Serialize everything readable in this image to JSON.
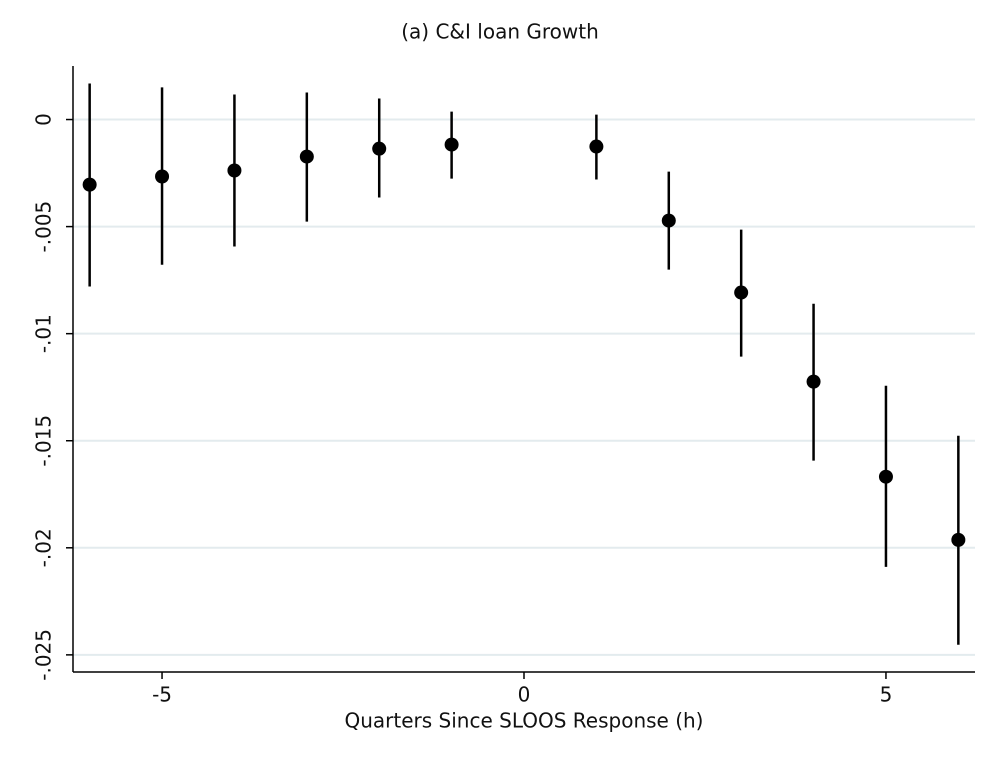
{
  "chart_data": {
    "type": "scatter",
    "title": "(a) C&I loan Growth",
    "x_label": "Quarters Since SLOOS Response (h)",
    "x": [
      -6,
      -5,
      -4,
      -3,
      -2,
      -1,
      1,
      2,
      3,
      4,
      5,
      6
    ],
    "series": [
      {
        "color": "#000000",
        "values": [
          -0.00304,
          -0.00266,
          -0.00238,
          -0.00173,
          -0.00136,
          -0.00117,
          -0.00126,
          -0.00472,
          -0.00808,
          -0.01224,
          -0.01668,
          -0.01963
        ],
        "lower": [
          -0.0078,
          -0.00678,
          -0.00593,
          -0.00477,
          -0.00364,
          -0.00276,
          -0.0028,
          -0.00701,
          -0.01107,
          -0.01593,
          -0.02089,
          -0.02453
        ],
        "upper": [
          0.00168,
          0.0015,
          0.00117,
          0.00126,
          0.00098,
          0.00037,
          0.00023,
          -0.00243,
          -0.00514,
          -0.0086,
          -0.01243,
          -0.01477
        ]
      }
    ],
    "xlim": [
      -6.23,
      6.23
    ],
    "xticks": [
      -5,
      0,
      5
    ],
    "ylim": [
      -0.0258,
      0.0025
    ],
    "yticks": [
      0,
      {
        "value": -0.005,
        "label": "-.005"
      },
      {
        "value": -0.01,
        "label": "-.01"
      },
      {
        "value": -0.015,
        "label": "-.015"
      },
      {
        "value": -0.02,
        "label": "-.02"
      },
      {
        "value": -0.025,
        "label": "-.025"
      }
    ],
    "grid": true
  }
}
